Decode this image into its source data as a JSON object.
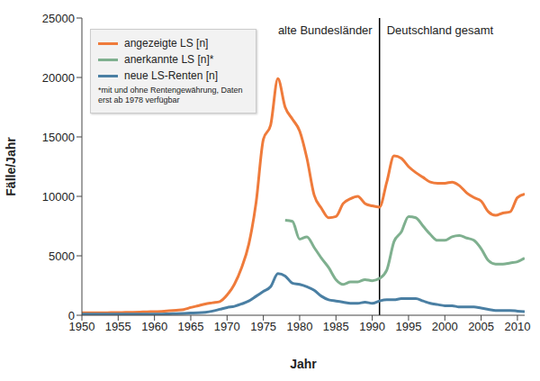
{
  "chart_data": {
    "type": "line",
    "x_label": "Jahr",
    "y_label": "Fälle/Jahr",
    "annotations": [
      "alte Bundesländer",
      "Deutschland gesamt"
    ],
    "divider": 1991,
    "note": "*mit und ohne Rentengewährung, Daten erst ab 1978 verfügbar",
    "legend": "upper left",
    "grid": false,
    "xlim": [
      1950,
      2011
    ],
    "xticks": [
      1950,
      1955,
      1960,
      1965,
      1970,
      1975,
      1980,
      1985,
      1990,
      1995,
      2000,
      2005,
      2010
    ],
    "ylim": [
      0,
      25000
    ],
    "yticks": [
      0,
      5000,
      10000,
      15000,
      20000,
      25000
    ],
    "x": [
      1950,
      1951,
      1952,
      1953,
      1954,
      1955,
      1956,
      1957,
      1958,
      1959,
      1960,
      1961,
      1962,
      1963,
      1964,
      1965,
      1966,
      1967,
      1968,
      1969,
      1970,
      1971,
      1972,
      1973,
      1974,
      1975,
      1976,
      1977,
      1978,
      1979,
      1980,
      1981,
      1982,
      1983,
      1984,
      1985,
      1986,
      1987,
      1988,
      1989,
      1990,
      1991,
      1992,
      1993,
      1994,
      1995,
      1996,
      1997,
      1998,
      1999,
      2000,
      2001,
      2002,
      2003,
      2004,
      2005,
      2006,
      2007,
      2008,
      2009,
      2010,
      2011
    ],
    "series": [
      {
        "name": "angezeigte LS [n]",
        "color": "#ef7b3b",
        "values": [
          200,
          200,
          200,
          210,
          220,
          230,
          240,
          250,
          270,
          290,
          300,
          330,
          370,
          420,
          480,
          650,
          800,
          950,
          1050,
          1150,
          1700,
          2600,
          4000,
          6000,
          9500,
          14800,
          16000,
          19900,
          17500,
          16500,
          15500,
          13200,
          10100,
          9000,
          8200,
          8300,
          9400,
          9800,
          10000,
          9400,
          9200,
          9100,
          11200,
          13400,
          13200,
          12500,
          12000,
          11600,
          11200,
          11100,
          11100,
          11200,
          10900,
          10300,
          9900,
          9600,
          8700,
          8400,
          8600,
          8700,
          9900,
          10200
        ]
      },
      {
        "name": "anerkannte LS [n]*",
        "color": "#7fb08f",
        "values": [
          null,
          null,
          null,
          null,
          null,
          null,
          null,
          null,
          null,
          null,
          null,
          null,
          null,
          null,
          null,
          null,
          null,
          null,
          null,
          null,
          null,
          null,
          null,
          null,
          null,
          null,
          null,
          null,
          8000,
          7900,
          6400,
          6600,
          5700,
          4800,
          4000,
          3000,
          2600,
          2800,
          2800,
          3000,
          2900,
          3100,
          3800,
          6200,
          7000,
          8300,
          8200,
          7500,
          6800,
          6300,
          6300,
          6600,
          6700,
          6500,
          6300,
          5600,
          4600,
          4300,
          4300,
          4400,
          4500,
          4800
        ]
      },
      {
        "name": "neue LS-Renten [n]",
        "color": "#4a7fa3",
        "values": [
          100,
          100,
          100,
          100,
          100,
          100,
          100,
          100,
          100,
          100,
          100,
          100,
          120,
          140,
          160,
          180,
          200,
          250,
          350,
          500,
          650,
          750,
          950,
          1200,
          1600,
          2000,
          2400,
          3500,
          3300,
          2700,
          2600,
          2400,
          2100,
          1600,
          1300,
          1200,
          1100,
          1000,
          1000,
          1100,
          1000,
          1200,
          1300,
          1300,
          1400,
          1400,
          1400,
          1200,
          1000,
          900,
          800,
          800,
          700,
          700,
          700,
          600,
          500,
          400,
          400,
          400,
          350,
          300
        ]
      }
    ]
  }
}
